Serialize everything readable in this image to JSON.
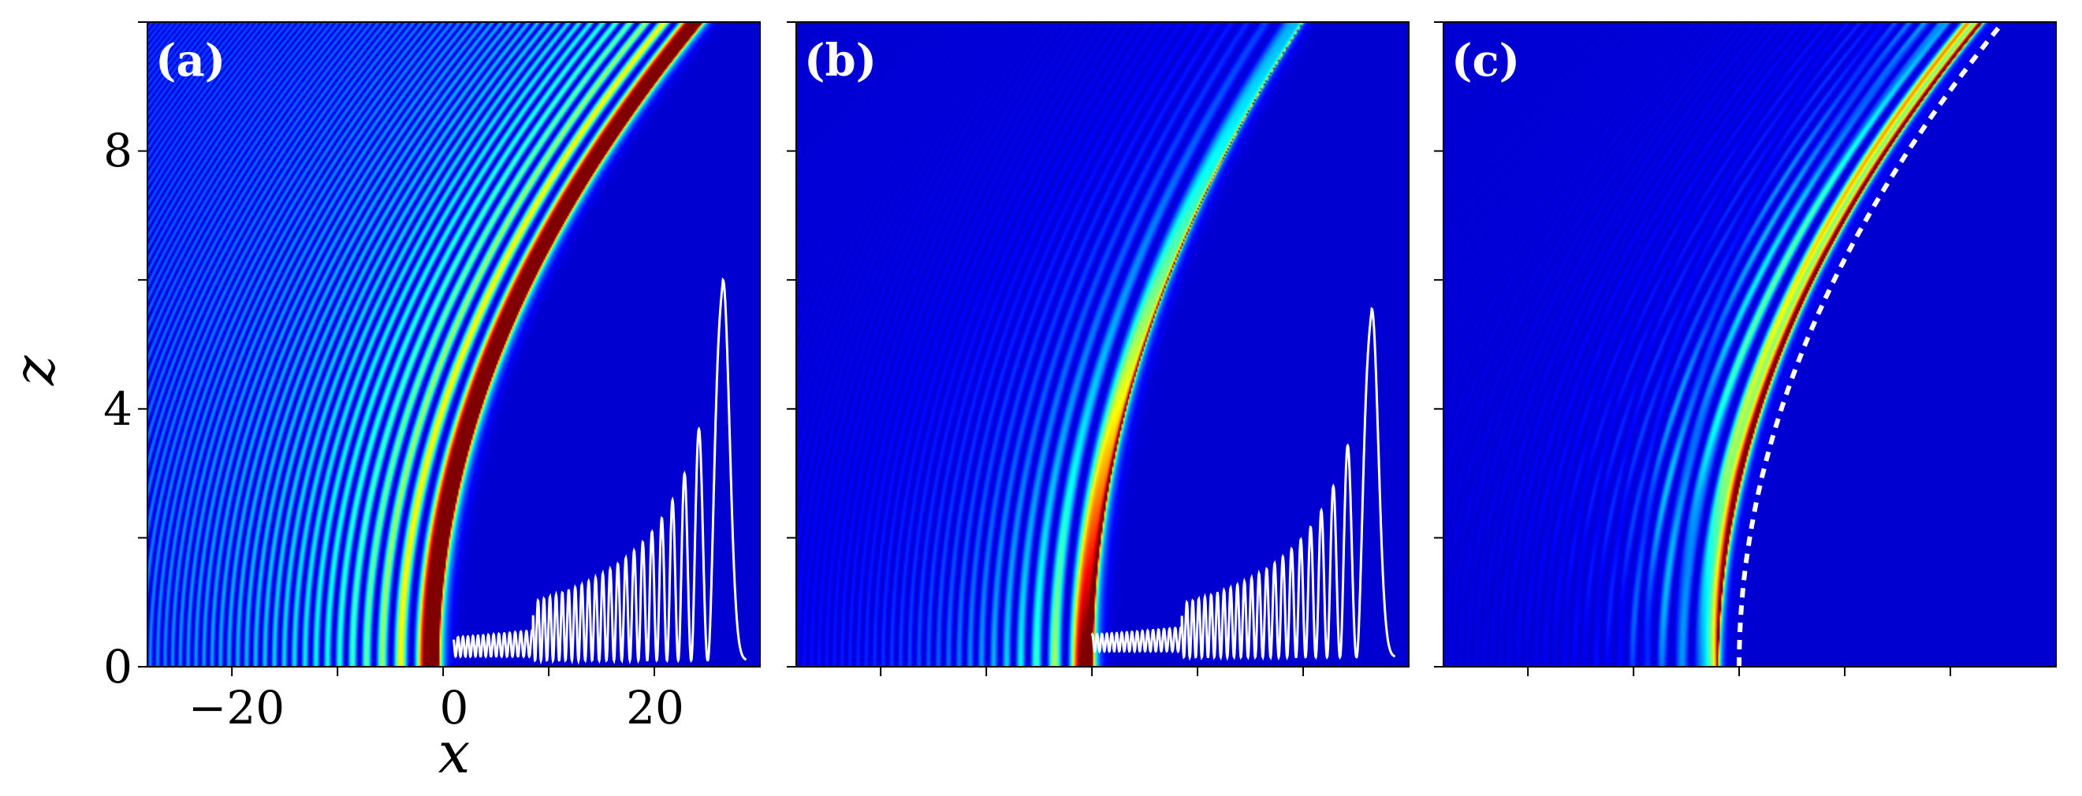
{
  "chart_data": [
    {
      "type": "heatmap",
      "panel_label": "(a)",
      "xlabel": "x",
      "ylabel": "z",
      "xlim": [
        -28,
        30
      ],
      "ylim": [
        0,
        10
      ],
      "x_ticks": [
        -20,
        0,
        20
      ],
      "y_ticks": [
        0,
        4,
        8
      ],
      "x_tick_labels": [
        "−20",
        "0",
        "20"
      ],
      "y_tick_labels": [
        "0",
        "4",
        "8"
      ],
      "colormap": "jet",
      "main_lobe_x0": -0.5,
      "trajectory_coeff": 0.25,
      "overlay_profile": {
        "color": "#ffffff",
        "x_start": 1.0,
        "x_peak": 26.5,
        "baseline_z": 0.1,
        "peak_z": 5.9
      }
    },
    {
      "type": "heatmap",
      "panel_label": "(b)",
      "xlim": [
        -28,
        30
      ],
      "ylim": [
        0,
        10
      ],
      "x_ticks": [
        -20,
        0,
        20
      ],
      "y_ticks": [
        0,
        4,
        8
      ],
      "colormap": "jet",
      "main_lobe_x0": 0,
      "trajectory_coeff": 0.2,
      "overlay_profile": {
        "color": "#ffffff",
        "x_start": 0,
        "x_peak": 26.5,
        "baseline_z": 0.15,
        "peak_z": 5.4
      }
    },
    {
      "type": "heatmap",
      "panel_label": "(c)",
      "xlim": [
        -28,
        30
      ],
      "ylim": [
        0,
        10
      ],
      "x_ticks": [
        -20,
        0,
        20
      ],
      "y_ticks": [
        0,
        4,
        8
      ],
      "colormap": "jet",
      "main_lobe_x0": -2,
      "trajectory_coeff": 0.25,
      "reference_curve": {
        "style": "dashed",
        "color": "#ffffff",
        "x0": 0
      }
    }
  ],
  "colors": {
    "background": "#00008f",
    "overlay": "#ffffff"
  }
}
